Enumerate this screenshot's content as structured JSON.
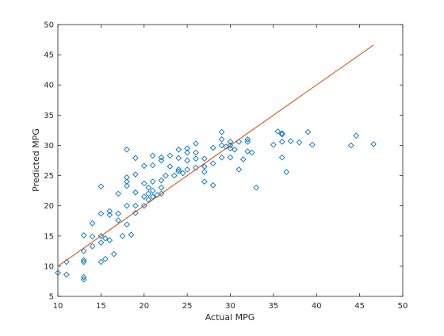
{
  "chart_data": {
    "type": "scatter",
    "xlabel": "Actual MPG",
    "ylabel": "Predicted MPG",
    "xlim": [
      10,
      50
    ],
    "ylim": [
      5,
      50
    ],
    "xticks": [
      10,
      15,
      20,
      25,
      30,
      35,
      40,
      45,
      50
    ],
    "yticks": [
      5,
      10,
      15,
      20,
      25,
      30,
      35,
      40,
      45,
      50
    ],
    "grid": false,
    "marker_color": "#0072BD",
    "line_color": "#D95319",
    "series": [
      {
        "type": "scatter",
        "marker": "diamond",
        "points": [
          [
            10.0,
            8.9
          ],
          [
            11.0,
            8.6
          ],
          [
            11.0,
            10.7
          ],
          [
            13.0,
            7.8
          ],
          [
            13.0,
            8.2
          ],
          [
            13.0,
            10.7
          ],
          [
            13.0,
            11.0
          ],
          [
            13.0,
            12.5
          ],
          [
            13.0,
            15.1
          ],
          [
            14.0,
            13.3
          ],
          [
            14.0,
            14.9
          ],
          [
            14.0,
            17.1
          ],
          [
            15.0,
            10.7
          ],
          [
            15.0,
            13.9
          ],
          [
            15.0,
            15.0
          ],
          [
            15.0,
            18.7
          ],
          [
            15.0,
            23.2
          ],
          [
            15.5,
            11.2
          ],
          [
            15.5,
            14.6
          ],
          [
            16.0,
            14.3
          ],
          [
            16.0,
            18.5
          ],
          [
            16.0,
            19.1
          ],
          [
            16.5,
            12.0
          ],
          [
            17.0,
            17.6
          ],
          [
            17.0,
            18.7
          ],
          [
            17.0,
            22.0
          ],
          [
            17.5,
            15.0
          ],
          [
            18.0,
            16.9
          ],
          [
            18.0,
            20.0
          ],
          [
            18.0,
            23.3
          ],
          [
            18.0,
            24.0
          ],
          [
            18.0,
            24.7
          ],
          [
            18.0,
            29.3
          ],
          [
            18.5,
            15.2
          ],
          [
            19.0,
            18.8
          ],
          [
            19.0,
            20.0
          ],
          [
            19.0,
            22.2
          ],
          [
            19.0,
            25.2
          ],
          [
            19.0,
            27.9
          ],
          [
            20.0,
            20.0
          ],
          [
            20.0,
            21.5
          ],
          [
            20.0,
            23.7
          ],
          [
            20.0,
            26.6
          ],
          [
            20.5,
            21.0
          ],
          [
            20.5,
            22.0
          ],
          [
            20.5,
            23.0
          ],
          [
            21.0,
            21.5
          ],
          [
            21.0,
            22.5
          ],
          [
            21.0,
            24.0
          ],
          [
            21.0,
            26.7
          ],
          [
            21.0,
            28.3
          ],
          [
            21.5,
            21.8
          ],
          [
            22.0,
            22.0
          ],
          [
            22.0,
            23.0
          ],
          [
            22.0,
            24.2
          ],
          [
            22.0,
            27.5
          ],
          [
            22.0,
            28.0
          ],
          [
            22.5,
            25.0
          ],
          [
            23.0,
            26.5
          ],
          [
            23.0,
            28.3
          ],
          [
            23.5,
            25.0
          ],
          [
            24.0,
            25.7
          ],
          [
            24.0,
            26.0
          ],
          [
            24.0,
            27.9
          ],
          [
            24.0,
            29.3
          ],
          [
            24.5,
            25.4
          ],
          [
            25.0,
            26.0
          ],
          [
            25.0,
            27.5
          ],
          [
            25.0,
            28.8
          ],
          [
            25.0,
            29.5
          ],
          [
            26.0,
            26.3
          ],
          [
            26.0,
            27.8
          ],
          [
            26.0,
            28.8
          ],
          [
            26.0,
            30.3
          ],
          [
            27.0,
            24.0
          ],
          [
            27.0,
            25.6
          ],
          [
            27.0,
            26.5
          ],
          [
            27.0,
            27.8
          ],
          [
            28.0,
            23.4
          ],
          [
            28.0,
            27.0
          ],
          [
            28.0,
            29.6
          ],
          [
            29.0,
            28.0
          ],
          [
            29.0,
            30.0
          ],
          [
            29.0,
            31.0
          ],
          [
            29.0,
            32.2
          ],
          [
            29.5,
            29.8
          ],
          [
            30.0,
            28.0
          ],
          [
            30.0,
            29.5
          ],
          [
            30.0,
            30.0
          ],
          [
            30.0,
            30.6
          ],
          [
            30.5,
            29.3
          ],
          [
            31.0,
            26.0
          ],
          [
            31.0,
            30.6
          ],
          [
            31.5,
            27.7
          ],
          [
            32.0,
            29.0
          ],
          [
            32.0,
            30.6
          ],
          [
            32.0,
            31.0
          ],
          [
            32.5,
            28.8
          ],
          [
            33.0,
            23.0
          ],
          [
            35.0,
            30.1
          ],
          [
            35.5,
            32.3
          ],
          [
            36.0,
            30.6
          ],
          [
            36.0,
            31.8
          ],
          [
            36.0,
            32.0
          ],
          [
            36.0,
            28.0
          ],
          [
            36.5,
            25.6
          ],
          [
            37.0,
            30.7
          ],
          [
            38.0,
            30.5
          ],
          [
            39.0,
            32.2
          ],
          [
            39.5,
            30.1
          ],
          [
            44.0,
            30.0
          ],
          [
            44.6,
            31.6
          ],
          [
            46.6,
            30.2
          ]
        ]
      },
      {
        "type": "line",
        "points": [
          [
            10.0,
            10.0
          ],
          [
            46.6,
            46.6
          ]
        ]
      }
    ]
  }
}
